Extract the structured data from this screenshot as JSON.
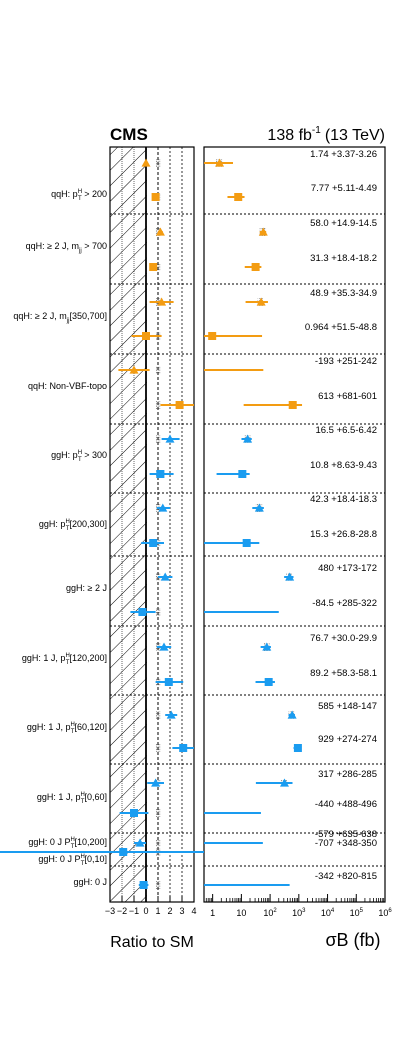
{
  "header": {
    "experiment": "CMS",
    "luminosity": "138 fb",
    "lumi_exponent": "-1",
    "energy": "(13 TeV)"
  },
  "colors": {
    "qqH": "#f39c12",
    "ggH": "#1a9cf0",
    "sm_box": "#888888",
    "axis": "#000000"
  },
  "chart_data": [
    {
      "type": "scatter",
      "name": "ratio-panel",
      "xlabel": "Ratio to SM",
      "xlim": [
        -3,
        4
      ],
      "xticks": [
        "−3",
        "−2",
        "−1",
        "0",
        "1",
        "2",
        "3",
        "4"
      ],
      "hatched_region": "x < 0",
      "points": [
        {
          "bin": 0,
          "process": "qqH",
          "marker": "triangle",
          "ratio": 0.0,
          "lo": 0.0,
          "hi": 0.0
        },
        {
          "bin": 0,
          "process": "qqH",
          "marker": "square",
          "ratio": 0.8,
          "lo": 0.6,
          "hi": 1.0
        },
        {
          "bin": 1,
          "process": "qqH",
          "marker": "triangle",
          "ratio": 1.2,
          "lo": 1.0,
          "hi": 1.4
        },
        {
          "bin": 1,
          "process": "qqH",
          "marker": "square",
          "ratio": 0.6,
          "lo": 0.4,
          "hi": 0.8
        },
        {
          "bin": 2,
          "process": "qqH",
          "marker": "triangle",
          "ratio": 1.3,
          "lo": 0.3,
          "hi": 2.3
        },
        {
          "bin": 2,
          "process": "qqH",
          "marker": "square",
          "ratio": 0.0,
          "lo": -1.2,
          "hi": 1.3
        },
        {
          "bin": 3,
          "process": "qqH",
          "marker": "triangle",
          "ratio": -1.0,
          "lo": -2.3,
          "hi": 0.3
        },
        {
          "bin": 3,
          "process": "qqH",
          "marker": "square",
          "ratio": 2.8,
          "lo": 1.2,
          "hi": 4.0
        },
        {
          "bin": 4,
          "process": "ggH",
          "marker": "triangle",
          "ratio": 2.0,
          "lo": 1.3,
          "hi": 2.8
        },
        {
          "bin": 4,
          "process": "ggH",
          "marker": "square",
          "ratio": 1.2,
          "lo": 0.3,
          "hi": 2.3
        },
        {
          "bin": 5,
          "process": "ggH",
          "marker": "triangle",
          "ratio": 1.4,
          "lo": 0.9,
          "hi": 2.0
        },
        {
          "bin": 5,
          "process": "ggH",
          "marker": "square",
          "ratio": 0.6,
          "lo": -0.4,
          "hi": 1.5
        },
        {
          "bin": 6,
          "process": "ggH",
          "marker": "triangle",
          "ratio": 1.6,
          "lo": 1.0,
          "hi": 2.2
        },
        {
          "bin": 6,
          "process": "ggH",
          "marker": "square",
          "ratio": -0.3,
          "lo": -1.3,
          "hi": 0.8
        },
        {
          "bin": 7,
          "process": "ggH",
          "marker": "triangle",
          "ratio": 1.5,
          "lo": 0.9,
          "hi": 2.1
        },
        {
          "bin": 7,
          "process": "ggH",
          "marker": "square",
          "ratio": 1.9,
          "lo": 0.8,
          "hi": 3.1
        },
        {
          "bin": 8,
          "process": "ggH",
          "marker": "triangle",
          "ratio": 2.1,
          "lo": 1.6,
          "hi": 2.6
        },
        {
          "bin": 8,
          "process": "ggH",
          "marker": "square",
          "ratio": 3.1,
          "lo": 2.2,
          "hi": 4.0
        },
        {
          "bin": 9,
          "process": "ggH",
          "marker": "triangle",
          "ratio": 0.8,
          "lo": 0.1,
          "hi": 1.5
        },
        {
          "bin": 9,
          "process": "ggH",
          "marker": "square",
          "ratio": -1.0,
          "lo": -2.2,
          "hi": 0.2
        },
        {
          "bin": 10,
          "process": "ggH",
          "marker": "triangle",
          "ratio": -0.5,
          "lo": -1.0,
          "hi": 0.0
        },
        {
          "bin": 10,
          "process": "ggH",
          "marker": "square",
          "ratio": -1.9,
          "lo": -2.7,
          "hi": -1.0
        },
        {
          "bin": 11,
          "process": "ggH",
          "marker": "square",
          "ratio": -0.2,
          "lo": -0.6,
          "hi": 0.2
        }
      ]
    },
    {
      "type": "scatter",
      "name": "cross-section-panel",
      "xlabel": "σB (fb)",
      "xscale": "log",
      "xlim": [
        0.5,
        1000000
      ],
      "xticks": [
        "1",
        "10",
        "10^2",
        "10^3",
        "10^4",
        "10^5",
        "10^6"
      ],
      "points": [
        {
          "bin": 0,
          "process": "qqH",
          "marker": "triangle",
          "value": 1.74,
          "err_up": 3.37,
          "err_down": 3.26,
          "label": "1.74 +3.37-3.26"
        },
        {
          "bin": 0,
          "process": "qqH",
          "marker": "square",
          "value": 7.77,
          "err_up": 5.11,
          "err_down": 4.49,
          "label": "7.77 +5.11-4.49"
        },
        {
          "bin": 1,
          "process": "qqH",
          "marker": "triangle",
          "value": 58.0,
          "err_up": 14.9,
          "err_down": 14.5,
          "label": "58.0 +14.9-14.5"
        },
        {
          "bin": 1,
          "process": "qqH",
          "marker": "square",
          "value": 31.3,
          "err_up": 18.4,
          "err_down": 18.2,
          "label": "31.3 +18.4-18.2"
        },
        {
          "bin": 2,
          "process": "qqH",
          "marker": "triangle",
          "value": 48.9,
          "err_up": 35.3,
          "err_down": 34.9,
          "label": "48.9 +35.3-34.9"
        },
        {
          "bin": 2,
          "process": "qqH",
          "marker": "square",
          "value": 0.964,
          "err_up": 51.5,
          "err_down": 48.8,
          "label": "0.964 +51.5-48.8"
        },
        {
          "bin": 3,
          "process": "qqH",
          "marker": "triangle",
          "value": -193,
          "err_up": 251,
          "err_down": 242,
          "label": "-193 +251-242"
        },
        {
          "bin": 3,
          "process": "qqH",
          "marker": "square",
          "value": 613,
          "err_up": 681,
          "err_down": 601,
          "label": "613 +681-601"
        },
        {
          "bin": 4,
          "process": "ggH",
          "marker": "triangle",
          "value": 16.5,
          "err_up": 6.5,
          "err_down": 6.42,
          "label": "16.5 +6.5-6.42"
        },
        {
          "bin": 4,
          "process": "ggH",
          "marker": "square",
          "value": 10.8,
          "err_up": 8.63,
          "err_down": 9.43,
          "label": "10.8 +8.63-9.43"
        },
        {
          "bin": 5,
          "process": "ggH",
          "marker": "triangle",
          "value": 42.3,
          "err_up": 18.4,
          "err_down": 18.3,
          "label": "42.3 +18.4-18.3"
        },
        {
          "bin": 5,
          "process": "ggH",
          "marker": "square",
          "value": 15.3,
          "err_up": 26.8,
          "err_down": 28.8,
          "label": "15.3 +26.8-28.8"
        },
        {
          "bin": 6,
          "process": "ggH",
          "marker": "triangle",
          "value": 480,
          "err_up": 173,
          "err_down": 172,
          "label": "480 +173-172"
        },
        {
          "bin": 6,
          "process": "ggH",
          "marker": "square",
          "value": -84.5,
          "err_up": 285,
          "err_down": 322,
          "label": "-84.5 +285-322"
        },
        {
          "bin": 7,
          "process": "ggH",
          "marker": "triangle",
          "value": 76.7,
          "err_up": 30.0,
          "err_down": 29.9,
          "label": "76.7 +30.0-29.9"
        },
        {
          "bin": 7,
          "process": "ggH",
          "marker": "square",
          "value": 89.2,
          "err_up": 58.3,
          "err_down": 58.1,
          "label": "89.2 +58.3-58.1"
        },
        {
          "bin": 8,
          "process": "ggH",
          "marker": "triangle",
          "value": 585,
          "err_up": 148,
          "err_down": 147,
          "label": "585 +148-147"
        },
        {
          "bin": 8,
          "process": "ggH",
          "marker": "square",
          "value": 929,
          "err_up": 274,
          "err_down": 274,
          "label": "929 +274-274"
        },
        {
          "bin": 9,
          "process": "ggH",
          "marker": "triangle",
          "value": 317,
          "err_up": 286,
          "err_down": 285,
          "label": "317 +286-285"
        },
        {
          "bin": 9,
          "process": "ggH",
          "marker": "square",
          "value": -440,
          "err_up": 488,
          "err_down": 496,
          "label": "-440 +488-496"
        },
        {
          "bin": 10,
          "process": "ggH",
          "marker": "triangle",
          "value": -579,
          "err_up": 635,
          "err_down": 638,
          "label": "-579 +635-638"
        },
        {
          "bin": 10,
          "process": "ggH",
          "marker": "square",
          "value": -707,
          "err_up": 348,
          "err_down": 350,
          "label": "-707 +348-350"
        },
        {
          "bin": 11,
          "process": "ggH",
          "marker": "square",
          "value": -342,
          "err_up": 820,
          "err_down": 815,
          "label": "-342 +820-815"
        }
      ]
    }
  ],
  "bins": [
    {
      "label": "qqH: p",
      "sup": "H",
      "sub": "T",
      "suffix": " > 200"
    },
    {
      "label": "qqH: ≥ 2 J, m",
      "sup": "",
      "sub": "jj",
      "suffix": " > 700"
    },
    {
      "label": "qqH: ≥  2 J, m",
      "sup": "",
      "sub": "jj",
      "suffix": "[350,700]"
    },
    {
      "label": "qqH: Non-VBF-topo",
      "sup": "",
      "sub": "",
      "suffix": ""
    },
    {
      "label": "ggH: p",
      "sup": "H",
      "sub": "T",
      "suffix": " > 300"
    },
    {
      "label": "ggH: p",
      "sup": "H",
      "sub": "T",
      "suffix": "[200,300]"
    },
    {
      "label": "ggH: ≥ 2 J",
      "sup": "",
      "sub": "",
      "suffix": ""
    },
    {
      "label": "ggH: 1 J, p",
      "sup": "H",
      "sub": "T",
      "suffix": "[120,200]"
    },
    {
      "label": "ggH: 1 J, p",
      "sup": "H",
      "sub": "T",
      "suffix": "[60,120]"
    },
    {
      "label": "ggH: 1 J, p",
      "sup": "H",
      "sub": "T",
      "suffix": "[0,60]"
    },
    {
      "label": "ggH: 0 J P",
      "sup": "H",
      "sub": "T",
      "suffix": "[10,200]",
      "extra_label": "ggH: 0 J P",
      "extra_sup": "H",
      "extra_sub": "T",
      "extra_suffix": "[0,10]"
    },
    {
      "label": "ggH: 0 J",
      "sup": "",
      "sub": "",
      "suffix": ""
    }
  ]
}
